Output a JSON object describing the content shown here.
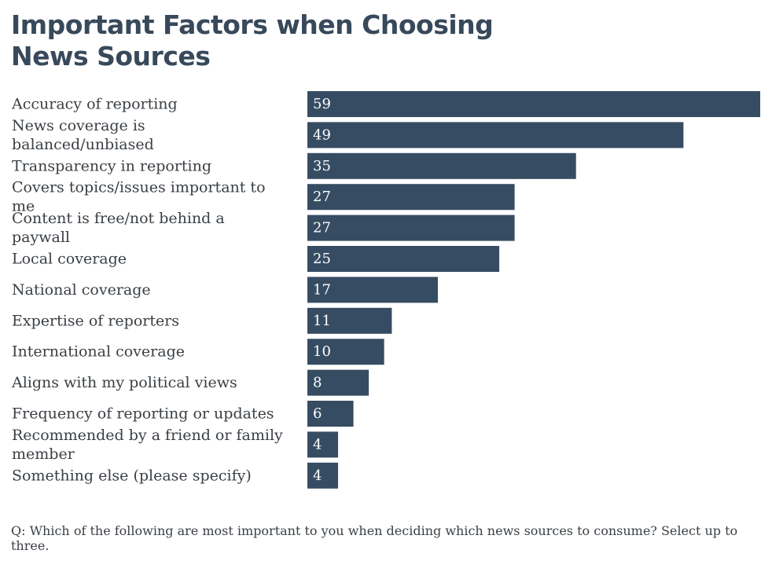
{
  "chart_data": {
    "type": "bar",
    "orientation": "horizontal",
    "title": "Important Factors when Choosing News Sources",
    "categories": [
      "Accuracy of reporting",
      "News coverage is balanced/unbiased",
      "Transparency in reporting",
      "Covers topics/issues important to me",
      "Content is free/not behind a paywall",
      "Local coverage",
      "National coverage",
      "Expertise of reporters",
      "International coverage",
      "Aligns with my political views",
      "Frequency of reporting or updates",
      "Recommended by a friend or family member",
      "Something else (please specify)"
    ],
    "values": [
      59,
      49,
      35,
      27,
      27,
      25,
      17,
      11,
      10,
      8,
      6,
      4,
      4
    ],
    "xlim": [
      0,
      59
    ],
    "grid": false,
    "legend": "none",
    "bar_color": "#364c62",
    "footnote": "Q: Which of the following are most important to you when deciding which news sources to consume? Select up to three."
  }
}
